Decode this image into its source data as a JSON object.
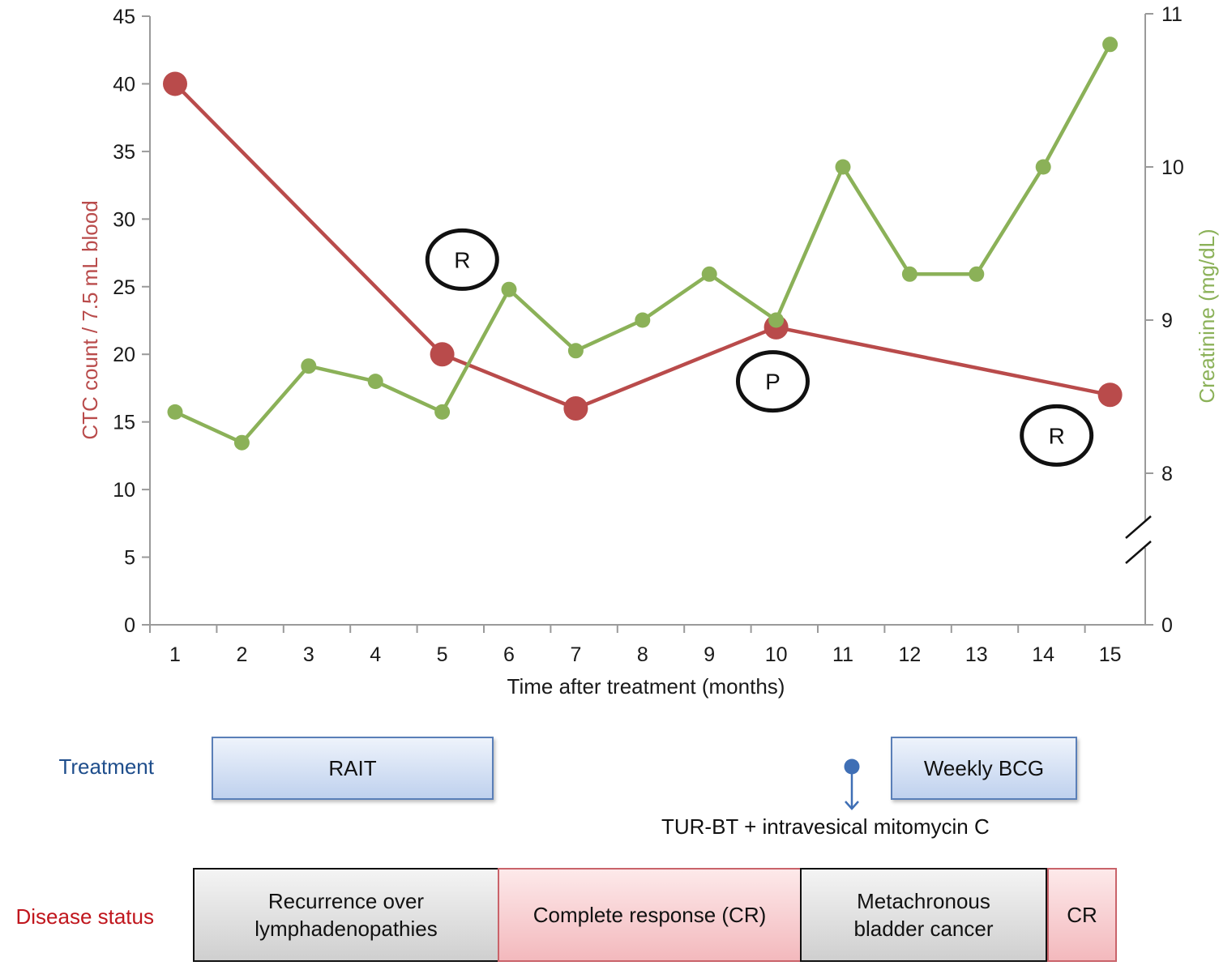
{
  "chart_data": {
    "type": "line",
    "xlabel": "Time after treatment (months)",
    "ylabel_left": "CTC count / 7.5 mL blood",
    "ylabel_right": "Creatinine (mg/dL)",
    "x_ticks": [
      "1",
      "2",
      "3",
      "4",
      "5",
      "6",
      "7",
      "8",
      "9",
      "10",
      "11",
      "12",
      "13",
      "14",
      "15"
    ],
    "ylim_left": [
      0,
      45
    ],
    "y_ticks_left": [
      "0",
      "5",
      "10",
      "15",
      "20",
      "25",
      "30",
      "35",
      "40",
      "45"
    ],
    "ylim_right": [
      0,
      11
    ],
    "y_ticks_right": [
      "0",
      "8",
      "9",
      "10",
      "11"
    ],
    "right_axis_break": true,
    "grid": false,
    "series": [
      {
        "axis": "left",
        "color": "#b94b4b",
        "x": [
          1,
          5,
          7,
          10,
          15
        ],
        "values": [
          40,
          20,
          16,
          22,
          17
        ]
      },
      {
        "axis": "right",
        "color": "#8bb158",
        "x": [
          1,
          2,
          3,
          4,
          5,
          6,
          7,
          8,
          9,
          10,
          11,
          12,
          13,
          14,
          15
        ],
        "values": [
          8.4,
          8.2,
          8.7,
          8.6,
          8.4,
          9.2,
          8.8,
          9.0,
          9.3,
          9.0,
          10.0,
          9.3,
          9.3,
          10.0,
          10.8
        ]
      }
    ],
    "annotations": [
      {
        "label": "R",
        "x": 5.3,
        "y": 27
      },
      {
        "label": "P",
        "x": 9.95,
        "y": 18
      },
      {
        "label": "R",
        "x": 14.2,
        "y": 14
      }
    ]
  },
  "timeline": {
    "treatment_label": "Treatment",
    "treatment_color": "#1f4e8c",
    "rait_label": "RAIT",
    "bcg_label": "Weekly BCG",
    "turbt_note": "TUR-BT + intravesical mitomycin C",
    "disease_label": "Disease status",
    "disease_color": "#c0161d",
    "status": [
      {
        "label": "Recurrence over\nlymphadenopathies"
      },
      {
        "label": "Complete response (CR)"
      },
      {
        "label": "Metachronous\nbladder cancer"
      },
      {
        "label": "CR"
      }
    ]
  }
}
